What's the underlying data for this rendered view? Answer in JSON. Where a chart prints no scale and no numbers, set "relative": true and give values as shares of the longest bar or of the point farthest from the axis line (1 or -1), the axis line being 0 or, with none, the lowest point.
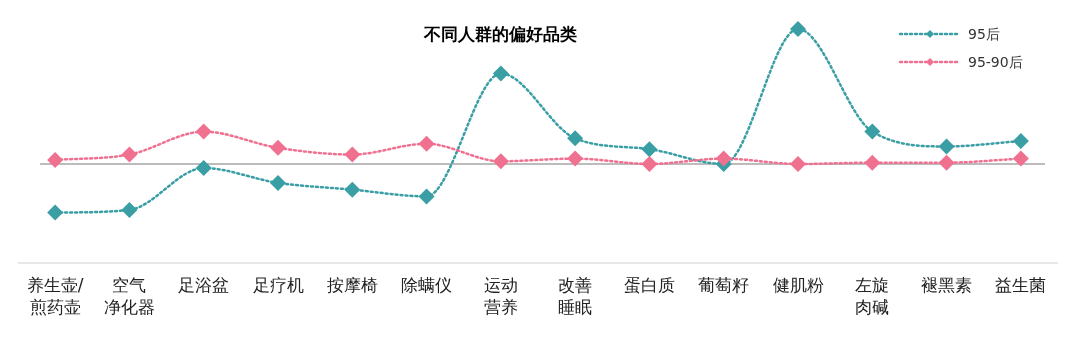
{
  "chart_data": {
    "type": "line",
    "title": "不同人群的偏好品类",
    "relative": true,
    "marker": "diamond",
    "line_style": "dotted",
    "legend": "top right",
    "categories": [
      "养生壶/煎药壶",
      "空气净化器",
      "足浴盆",
      "足疗机",
      "按摩椅",
      "除螨仪",
      "运动营养",
      "改善睡眠",
      "蛋白质",
      "葡萄籽",
      "健肌粉",
      "左旋肉碱",
      "褪黑素",
      "益生菌"
    ],
    "series": [
      {
        "name": "95后",
        "color": "#3a9ea5",
        "values": [
          -0.36,
          -0.34,
          -0.03,
          -0.14,
          -0.19,
          -0.24,
          0.67,
          0.19,
          0.11,
          0.0,
          1,
          0.24,
          0.13,
          0.17
        ]
      },
      {
        "name": "95-90后",
        "color": "#f07090",
        "values": [
          0.03,
          0.07,
          0.24,
          0.12,
          0.07,
          0.15,
          0.02,
          0.04,
          0.0,
          0.04,
          0.0,
          0.01,
          0.01,
          0.04
        ]
      }
    ]
  }
}
